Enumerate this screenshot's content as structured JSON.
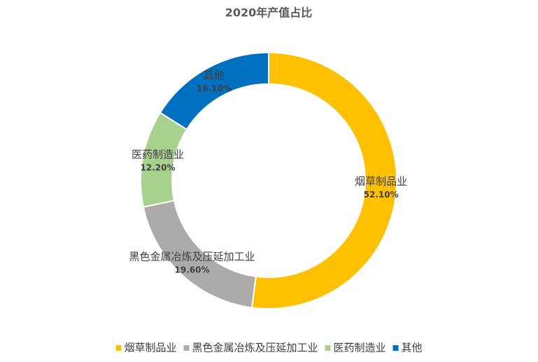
{
  "chart_data": {
    "type": "donut",
    "title": "2020年产值占比",
    "categories": [
      "烟草制品业",
      "黑色金属冶炼及压延加工业",
      "医药制造业",
      "其他"
    ],
    "values": [
      52.1,
      19.6,
      12.2,
      16.1
    ],
    "value_labels": [
      "52.10%",
      "19.60%",
      "12.20%",
      "16.10%"
    ],
    "colors": [
      "#FFC000",
      "#ADAAAA",
      "#A9D18E",
      "#0070C0"
    ],
    "legend": "bottom"
  }
}
